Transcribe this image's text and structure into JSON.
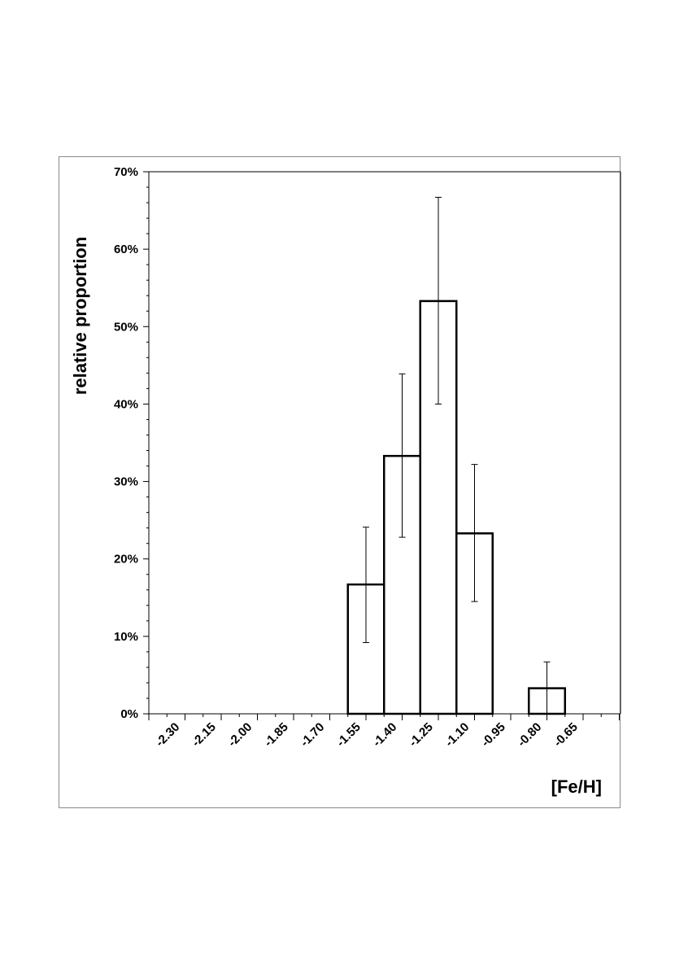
{
  "chart_data": {
    "type": "bar",
    "xlabel": "[Fe/H]",
    "ylabel": "relative proportion",
    "ylim": [
      0,
      0.7
    ],
    "y_ticks": [
      "0%",
      "10%",
      "20%",
      "30%",
      "40%",
      "50%",
      "60%",
      "70%"
    ],
    "x_ticks": [
      "-2.30",
      "-2.15",
      "-2.00",
      "-1.85",
      "-1.70",
      "-1.55",
      "-1.40",
      "-1.25",
      "-1.10",
      "-0.95",
      "-0.80",
      "-0.65"
    ],
    "bins": [
      {
        "from": -1.55,
        "to": -1.4,
        "value": 0.167,
        "err_low": 0.092,
        "err_high": 0.241
      },
      {
        "from": -1.4,
        "to": -1.25,
        "value": 0.333,
        "err_low": 0.228,
        "err_high": 0.439
      },
      {
        "from": -1.25,
        "to": -1.1,
        "value": 0.533,
        "err_low": 0.4,
        "err_high": 0.667
      },
      {
        "from": -1.1,
        "to": -0.95,
        "value": 0.233,
        "err_low": 0.145,
        "err_high": 0.322
      },
      {
        "from": -0.8,
        "to": -0.65,
        "value": 0.033,
        "err_low": 0.0,
        "err_high": 0.067
      }
    ],
    "grid": false,
    "legend": "none",
    "colors": {
      "bar_fill": "#ffffff",
      "bar_stroke": "#000000",
      "axis": "#000000"
    }
  }
}
